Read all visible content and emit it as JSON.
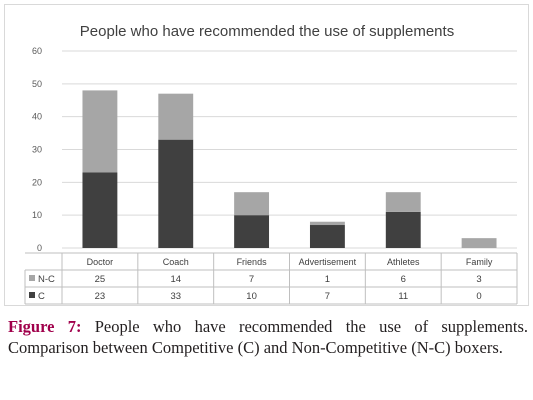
{
  "chart_data": {
    "type": "bar",
    "stacked": true,
    "title": "People who have recommended the use of supplements",
    "categories": [
      "Doctor",
      "Coach",
      "Friends",
      "Advertisement",
      "Athletes",
      "Family"
    ],
    "series": [
      {
        "name": "C",
        "values": [
          23,
          33,
          10,
          7,
          11,
          0
        ],
        "color": "#404040"
      },
      {
        "name": "N-C",
        "values": [
          25,
          14,
          7,
          1,
          6,
          3
        ],
        "color": "#a6a6a6"
      }
    ],
    "ylim": [
      0,
      60
    ],
    "yticks": [
      0,
      10,
      20,
      30,
      40,
      50,
      60
    ],
    "grid": true,
    "legend": "data-table"
  },
  "caption": {
    "label": "Figure 7:",
    "text": " People who have recommended the use of supplements. Comparison between Competitive (C) and Non-Competitive (N-C) boxers."
  }
}
